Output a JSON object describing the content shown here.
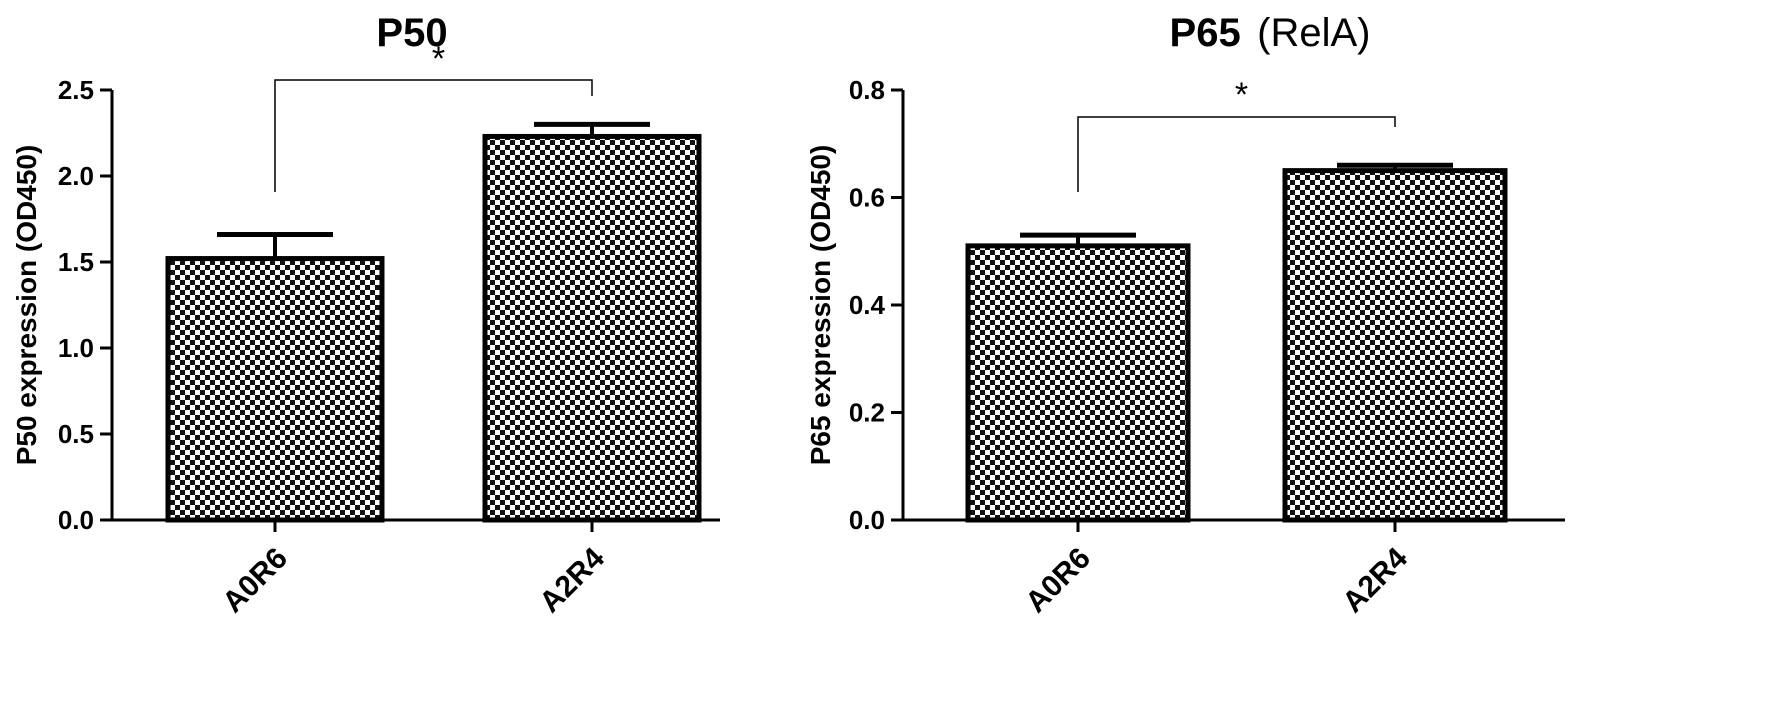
{
  "chart_data": [
    {
      "type": "bar",
      "title": "P50",
      "subtitle": "",
      "ylabel": "P50 expression (OD450)",
      "xlabel": "",
      "categories": [
        "A0R6",
        "A2R4"
      ],
      "values": [
        1.52,
        2.23
      ],
      "errors": [
        0.14,
        0.07
      ],
      "ylim": [
        0,
        2.5
      ],
      "yticks": [
        "0.0",
        "0.5",
        "1.0",
        "1.5",
        "2.0",
        "2.5"
      ],
      "significance": {
        "pair": [
          "A0R6",
          "A2R4"
        ],
        "label": "*"
      },
      "grid": false,
      "bar_fill": "checkerboard"
    },
    {
      "type": "bar",
      "title": "P65",
      "subtitle": "(RelA)",
      "ylabel": "P65 expression (OD450)",
      "xlabel": "",
      "categories": [
        "A0R6",
        "A2R4"
      ],
      "values": [
        0.51,
        0.65
      ],
      "errors": [
        0.02,
        0.01
      ],
      "ylim": [
        0,
        0.8
      ],
      "yticks": [
        "0.0",
        "0.2",
        "0.4",
        "0.6",
        "0.8"
      ],
      "significance": {
        "pair": [
          "A0R6",
          "A2R4"
        ],
        "label": "*"
      },
      "grid": false,
      "bar_fill": "checkerboard"
    }
  ],
  "colors": {
    "ink": "#000000",
    "background": "#ffffff",
    "checker_dark": "#111111"
  }
}
